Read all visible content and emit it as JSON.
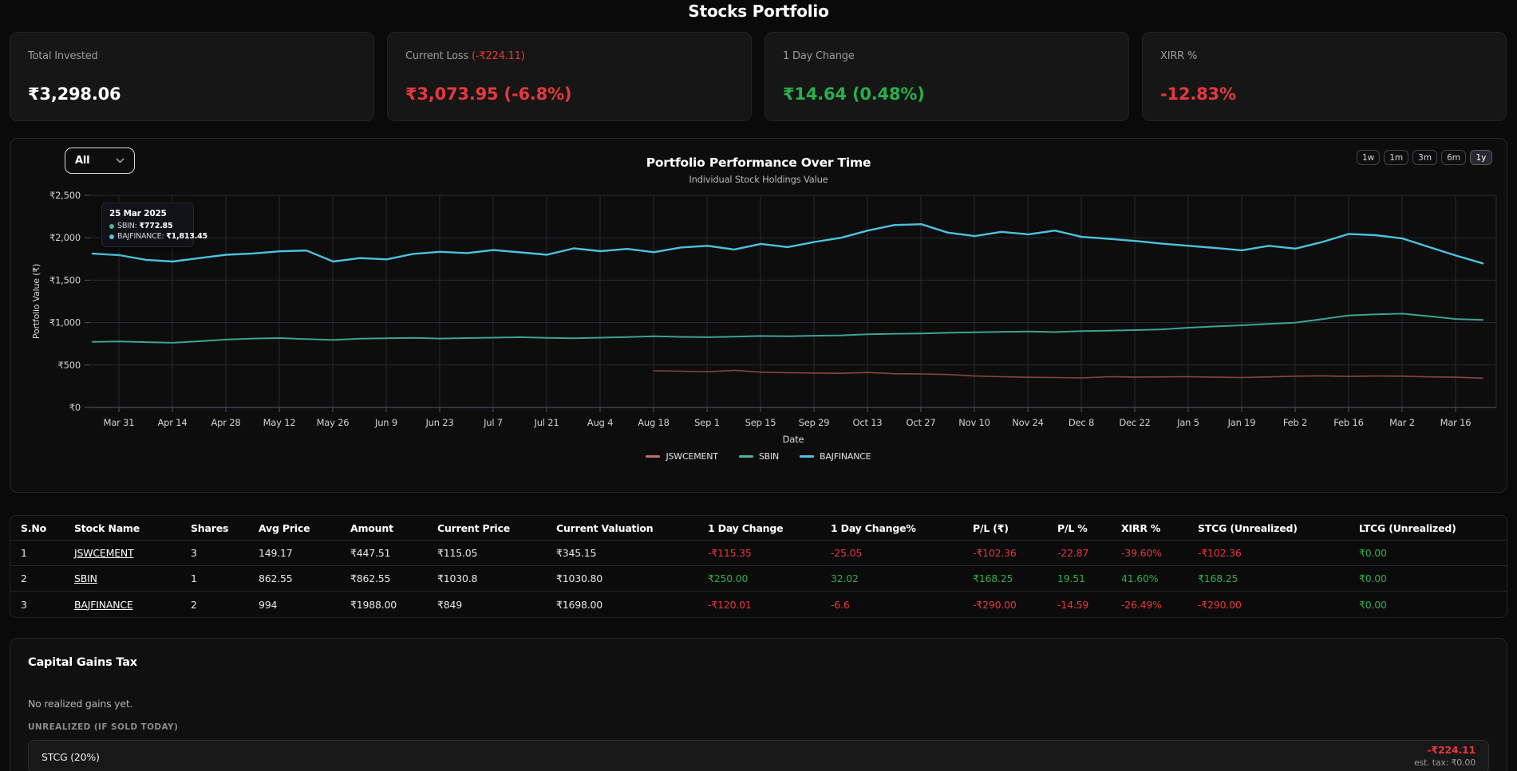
{
  "header": {
    "title": "Stocks Portfolio"
  },
  "cards": [
    {
      "label": "Total Invested",
      "value": "₹3,298.06",
      "tone": "white"
    },
    {
      "label": "Current Loss",
      "label_extra": "(-₹224.11)",
      "value": "₹3,073.95 (-6.8%)",
      "tone": "red"
    },
    {
      "label": "1 Day Change",
      "value": "₹14.64 (0.48%)",
      "tone": "green"
    },
    {
      "label": "XIRR %",
      "value": "-12.83%",
      "tone": "red"
    }
  ],
  "chart_ui": {
    "dropdown_value": "All",
    "ranges": [
      {
        "label": "1w",
        "active": false
      },
      {
        "label": "1m",
        "active": false
      },
      {
        "label": "3m",
        "active": false
      },
      {
        "label": "6m",
        "active": false
      },
      {
        "label": "1y",
        "active": true
      }
    ],
    "tooltip": {
      "date": "25 Mar 2025",
      "rows": [
        {
          "label": "SBIN:",
          "value": "₹772.85",
          "color": "#45b5a3"
        },
        {
          "label": "BAJFINANCE:",
          "value": "₹1,813.45",
          "color": "#53c1dc"
        }
      ]
    }
  },
  "chart_data": {
    "type": "line",
    "title": "Portfolio Performance Over Time",
    "subtitle": "Individual Stock Holdings Value",
    "xlabel": "Date",
    "ylabel": "Portfolio Value (₹)",
    "ylim": [
      0,
      2500
    ],
    "grid": true,
    "legend_position": "bottom",
    "y_ticks": [
      {
        "v": 2500,
        "label": "₹2,500"
      },
      {
        "v": 2000,
        "label": "₹2,000"
      },
      {
        "v": 1500,
        "label": "₹1,500"
      },
      {
        "v": 1000,
        "label": "₹1,000"
      },
      {
        "v": 500,
        "label": "₹500"
      },
      {
        "v": 0,
        "label": "₹0"
      }
    ],
    "x_ticks": [
      "Mar 31",
      "Apr 14",
      "Apr 28",
      "May 12",
      "May 26",
      "Jun 9",
      "Jun 23",
      "Jul 7",
      "Jul 21",
      "Aug 4",
      "Aug 18",
      "Sep 1",
      "Sep 15",
      "Sep 29",
      "Oct 13",
      "Oct 27",
      "Nov 10",
      "Nov 24",
      "Dec 8",
      "Dec 22",
      "Jan 5",
      "Jan 19",
      "Feb 2",
      "Feb 16",
      "Mar 2",
      "Mar 16"
    ],
    "points_per_tick": 2,
    "series": [
      {
        "name": "JSWCEMENT",
        "color": "#8a463c",
        "legend_color": "#bd7166",
        "width": 1.6,
        "values": [
          null,
          null,
          null,
          null,
          null,
          null,
          null,
          null,
          null,
          null,
          null,
          null,
          null,
          null,
          null,
          null,
          null,
          null,
          null,
          null,
          null,
          432,
          428,
          420,
          438,
          415,
          410,
          405,
          402,
          412,
          398,
          395,
          388,
          370,
          362,
          355,
          352,
          348,
          362,
          358,
          360,
          362,
          356,
          352,
          360,
          368,
          372,
          366,
          370,
          368,
          360,
          356,
          345
        ]
      },
      {
        "name": "SBIN",
        "color": "#3ea391",
        "legend_color": "#45b5a3",
        "width": 2,
        "values": [
          773,
          778,
          770,
          762,
          780,
          800,
          812,
          818,
          805,
          795,
          810,
          815,
          820,
          812,
          818,
          822,
          828,
          820,
          815,
          822,
          830,
          838,
          832,
          828,
          835,
          842,
          838,
          845,
          850,
          862,
          868,
          872,
          880,
          885,
          890,
          895,
          888,
          900,
          905,
          912,
          920,
          940,
          955,
          968,
          985,
          1000,
          1040,
          1085,
          1098,
          1105,
          1075,
          1042,
          1031
        ]
      },
      {
        "name": "BAJFINANCE",
        "color": "#4cc2de",
        "legend_color": "#53c1dc",
        "width": 2.4,
        "values": [
          1813,
          1795,
          1740,
          1720,
          1760,
          1800,
          1815,
          1840,
          1850,
          1720,
          1760,
          1745,
          1810,
          1835,
          1820,
          1855,
          1828,
          1800,
          1875,
          1842,
          1868,
          1830,
          1885,
          1905,
          1862,
          1928,
          1890,
          1950,
          2000,
          2085,
          2150,
          2160,
          2060,
          2020,
          2070,
          2040,
          2085,
          2010,
          1988,
          1962,
          1930,
          1905,
          1880,
          1852,
          1905,
          1872,
          1950,
          2045,
          2030,
          1992,
          1890,
          1790,
          1698
        ]
      }
    ]
  },
  "table": {
    "columns": [
      "S.No",
      "Stock Name",
      "Shares",
      "Avg Price",
      "Amount",
      "Current Price",
      "Current Valuation",
      "1 Day Change",
      "1 Day Change%",
      "P/L (₹)",
      "P/L %",
      "XIRR %",
      "STCG (Unrealized)",
      "LTCG (Unrealized)"
    ],
    "rows": [
      {
        "cells": [
          "1",
          "JSWCEMENT",
          "3",
          "149.17",
          "₹447.51",
          "₹115.05",
          "₹345.15",
          "-₹115.35",
          "-25.05",
          "-₹102.36",
          "-22.87",
          "-39.60%",
          "-₹102.36",
          "₹0.00"
        ],
        "colors": [
          "w",
          "l",
          "w",
          "w",
          "w",
          "w",
          "w",
          "r",
          "r",
          "r",
          "r",
          "r",
          "r",
          "g"
        ]
      },
      {
        "cells": [
          "2",
          "SBIN",
          "1",
          "862.55",
          "₹862.55",
          "₹1030.8",
          "₹1030.80",
          "₹250.00",
          "32.02",
          "₹168.25",
          "19.51",
          "41.60%",
          "₹168.25",
          "₹0.00"
        ],
        "colors": [
          "w",
          "l",
          "w",
          "w",
          "w",
          "w",
          "w",
          "g",
          "g",
          "g",
          "g",
          "g",
          "g",
          "g"
        ]
      },
      {
        "cells": [
          "3",
          "BAJFINANCE",
          "2",
          "994",
          "₹1988.00",
          "₹849",
          "₹1698.00",
          "-₹120.01",
          "-6.6",
          "-₹290.00",
          "-14.59",
          "-26.49%",
          "-₹290.00",
          "₹0.00"
        ],
        "colors": [
          "w",
          "l",
          "w",
          "w",
          "w",
          "w",
          "w",
          "r",
          "r",
          "r",
          "r",
          "r",
          "r",
          "g"
        ]
      }
    ]
  },
  "capital_gains": {
    "title": "Capital Gains Tax",
    "no_realized": "No realized gains yet.",
    "unrealized_label": "UNREALIZED (IF SOLD TODAY)",
    "stcg_label": "STCG (20%)",
    "stcg_amount": "-₹224.11",
    "stcg_est_tax": "est. tax: ₹0.00"
  },
  "colors": {
    "red": "#e5393d",
    "green": "#2eae4e",
    "grid": "#262c34"
  }
}
